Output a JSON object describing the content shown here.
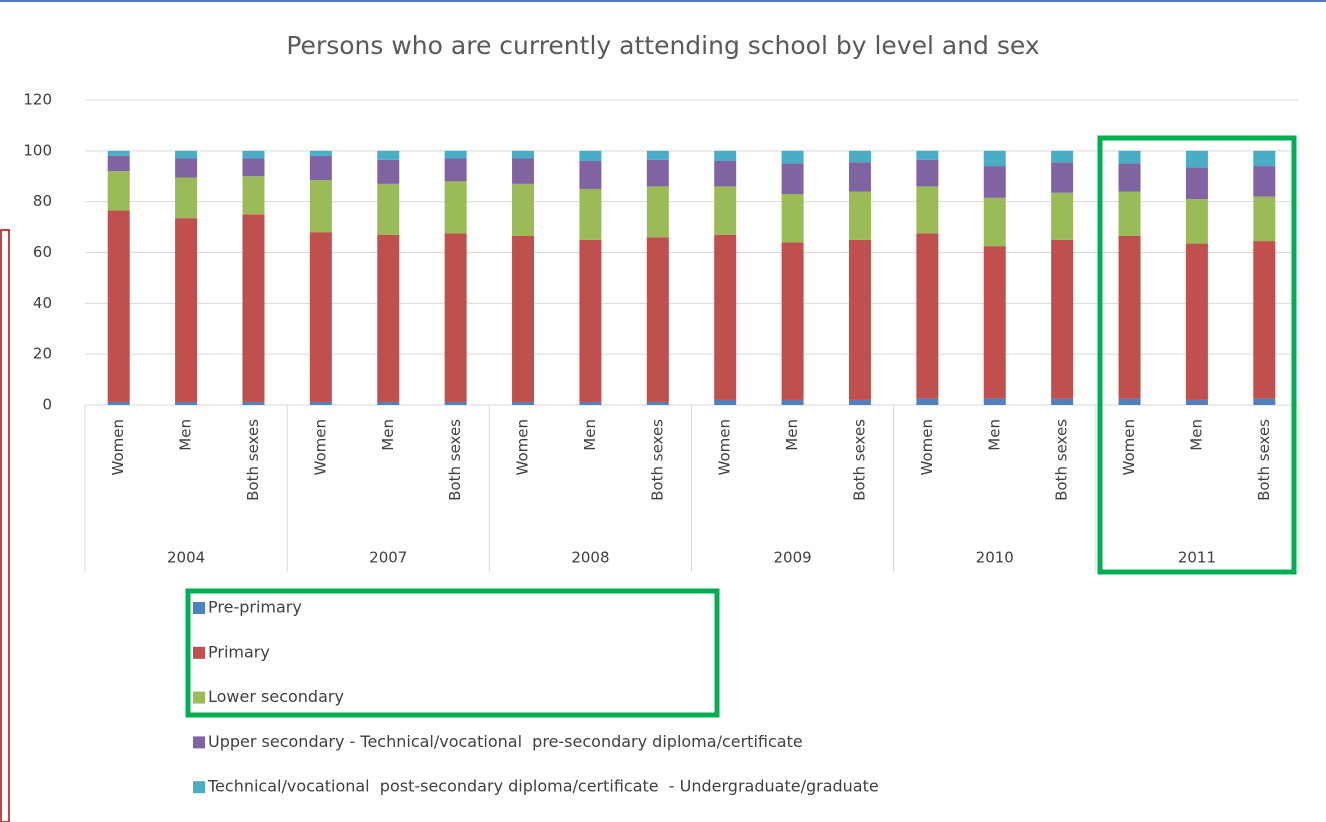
{
  "chart_data": {
    "type": "stacked_bar",
    "title": "Persons who are currently attending school by level and sex",
    "categories": [
      "Women",
      "Men",
      "Both sexes",
      "Women",
      "Men",
      "Both sexes",
      "Women",
      "Men",
      "Both sexes",
      "Women",
      "Men",
      "Both sexes",
      "Women",
      "Men",
      "Both sexes",
      "Women",
      "Men",
      "Both sexes"
    ],
    "groups": [
      "2004",
      "2007",
      "2008",
      "2009",
      "2010",
      "2011"
    ],
    "series": [
      {
        "name": "Pre-primary",
        "color": "#4f81bd",
        "values": [
          1.2,
          1.2,
          1.2,
          1.2,
          1.2,
          1.2,
          1.2,
          1.2,
          1.2,
          2,
          2,
          2,
          2.5,
          2.5,
          2.5,
          2.5,
          2,
          2.5
        ]
      },
      {
        "name": "Primary",
        "color": "#c0504d",
        "values": [
          75.3,
          72.3,
          73.8,
          66.8,
          65.8,
          66.3,
          65.3,
          63.8,
          64.8,
          65,
          62,
          63,
          65,
          60,
          62.5,
          64,
          61.5,
          62
        ]
      },
      {
        "name": "Lower secondary",
        "color": "#9bbb59",
        "values": [
          15.5,
          16,
          15,
          20.5,
          20,
          20.5,
          20.5,
          20,
          20,
          19,
          19,
          19,
          18.5,
          19,
          18.5,
          17.5,
          17.5,
          17.5
        ]
      },
      {
        "name": "Upper secondary - Technical/vocational  pre-secondary diploma/certificate",
        "color": "#8064a2",
        "values": [
          6,
          7.5,
          7,
          9.5,
          9.5,
          9,
          10,
          11,
          10.5,
          10,
          12,
          11.5,
          10.5,
          12.5,
          12,
          11,
          12.5,
          12
        ]
      },
      {
        "name": "Technical/vocational  post-secondary diploma/certificate  - Undergraduate/graduate",
        "color": "#4bacc6",
        "values": [
          2,
          3,
          3,
          2,
          3.5,
          3,
          3,
          4,
          3.5,
          4,
          5,
          4.5,
          3.5,
          6,
          4.5,
          5,
          6.5,
          6
        ]
      }
    ],
    "ylim": [
      0,
      120
    ],
    "yticks": [
      0,
      20,
      40,
      60,
      80,
      100,
      120
    ],
    "grid": true
  }
}
